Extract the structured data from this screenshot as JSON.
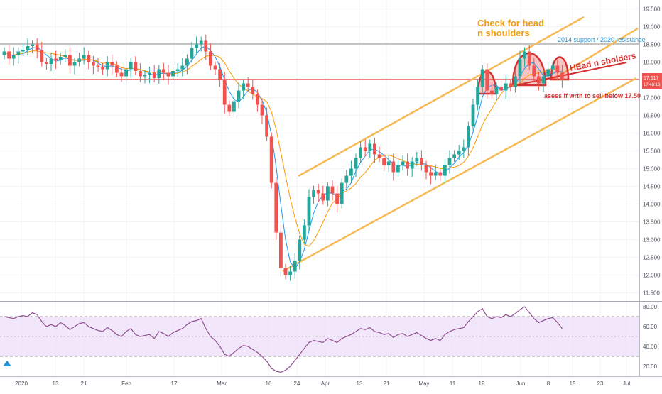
{
  "chart_data": {
    "type": "candlestick",
    "colors": {
      "up": "#26a69a",
      "down": "#ef5350",
      "ma_fast": "#2196f3",
      "ma_slow": "#ff9800",
      "channel": "#f7b955",
      "resistance": "#c4c4c4",
      "current_level": "#f08080",
      "price_badge": "#ef5350",
      "annotation_orange": "#f39c12",
      "annotation_red": "#d63131",
      "rsi_line": "#8e4d8e",
      "rsi_band": "#e9d7f6"
    },
    "x_tick_labels": [
      "2020",
      "13",
      "21",
      "Feb",
      "17",
      "Mar",
      "16",
      "24",
      "Apr",
      "13",
      "21",
      "May",
      "11",
      "19",
      "Jun",
      "8",
      "15",
      "23",
      "Jul"
    ],
    "y_axis": {
      "range": [
        11.25,
        19.75
      ],
      "tick_labels": [
        "19.500",
        "19.000",
        "18.500",
        "18.000",
        "17.500",
        "17.000",
        "16.500",
        "16.000",
        "15.500",
        "15.000",
        "14.500",
        "14.000",
        "13.500",
        "13.000",
        "12.500",
        "12.000",
        "11.500"
      ],
      "tick_values": [
        19.5,
        19.0,
        18.5,
        18.0,
        17.5,
        17.0,
        16.5,
        16.0,
        15.5,
        15.0,
        14.5,
        14.0,
        13.5,
        13.0,
        12.5,
        12.0,
        11.5
      ]
    },
    "price_badge": {
      "price": "17.517",
      "countdown": "17:46:16"
    },
    "resistance_level": 18.5,
    "current_level": 17.52,
    "closes": [
      18.3,
      18.1,
      18.2,
      18.3,
      18.35,
      18.45,
      18.5,
      18.35,
      18.0,
      17.95,
      18.1,
      18.05,
      18.15,
      18.2,
      17.9,
      18.0,
      18.1,
      18.2,
      18.0,
      17.9,
      17.85,
      17.8,
      18.0,
      17.9,
      17.7,
      17.6,
      17.8,
      18.0,
      17.75,
      17.6,
      17.65,
      17.7,
      17.55,
      17.8,
      17.7,
      17.6,
      17.75,
      17.8,
      17.9,
      18.1,
      18.4,
      18.5,
      18.6,
      18.3,
      17.9,
      17.8,
      17.5,
      16.8,
      16.6,
      16.9,
      17.2,
      17.4,
      17.3,
      17.1,
      16.8,
      16.5,
      15.9,
      14.6,
      13.2,
      12.2,
      12.0,
      12.1,
      12.4,
      13.0,
      13.4,
      14.2,
      14.4,
      14.3,
      14.1,
      14.5,
      14.3,
      14.0,
      14.6,
      14.8,
      15.0,
      15.3,
      15.6,
      15.5,
      15.7,
      15.4,
      15.3,
      15.1,
      15.2,
      14.9,
      15.1,
      15.2,
      15.0,
      15.2,
      15.3,
      15.1,
      14.9,
      14.8,
      14.9,
      14.8,
      15.1,
      15.3,
      15.4,
      15.5,
      15.6,
      16.2,
      16.8,
      17.3,
      17.8,
      17.2,
      17.1,
      17.3,
      17.2,
      17.4,
      17.3,
      17.6,
      18.1,
      18.3,
      17.9,
      17.6,
      17.4,
      17.6,
      17.8,
      17.9,
      17.7,
      17.517
    ],
    "rsi": {
      "range": [
        10,
        85
      ],
      "tick_labels": [
        "80.00",
        "60.00",
        "40.00",
        "20.00"
      ],
      "tick_values": [
        80,
        60,
        40,
        20
      ],
      "band": [
        30,
        70
      ],
      "values": [
        70,
        69,
        68,
        70,
        71,
        70,
        74,
        72,
        65,
        60,
        62,
        60,
        64,
        61,
        57,
        60,
        63,
        64,
        60,
        58,
        56,
        55,
        59,
        56,
        52,
        50,
        55,
        58,
        52,
        50,
        51,
        52,
        48,
        55,
        53,
        50,
        54,
        56,
        58,
        62,
        65,
        66,
        68,
        58,
        50,
        46,
        40,
        32,
        30,
        34,
        38,
        41,
        40,
        37,
        34,
        30,
        25,
        18,
        15,
        14,
        16,
        20,
        26,
        32,
        38,
        44,
        46,
        45,
        44,
        48,
        46,
        44,
        48,
        50,
        52,
        55,
        58,
        57,
        59,
        55,
        54,
        52,
        53,
        49,
        52,
        53,
        50,
        52,
        54,
        51,
        48,
        46,
        48,
        46,
        52,
        55,
        57,
        58,
        59,
        65,
        70,
        75,
        78,
        70,
        68,
        70,
        69,
        72,
        70,
        73,
        77,
        80,
        74,
        68,
        64,
        66,
        68,
        69,
        64,
        58
      ]
    },
    "annotations": {
      "check_head": [
        "Check for head",
        "n shoulders"
      ],
      "resistance_label": "2014 support / 2020 resistance",
      "head_shoulders_label": "HEad n sholders",
      "sell_note": "asess if wrth to sell below 17.50"
    }
  }
}
